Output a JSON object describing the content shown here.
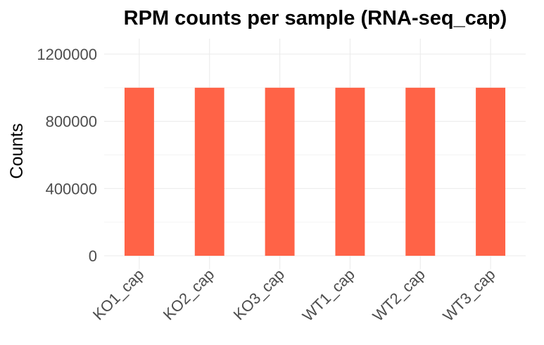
{
  "chart_data": {
    "type": "bar",
    "title": "RPM counts per sample (RNA-seq_cap)",
    "xlabel": "",
    "ylabel": "Counts",
    "categories": [
      "KO1_cap",
      "KO2_cap",
      "KO3_cap",
      "WT1_cap",
      "WT2_cap",
      "WT3_cap"
    ],
    "values": [
      1000000,
      1000000,
      1000000,
      1000000,
      1000000,
      1000000
    ],
    "ylim": [
      0,
      1200000
    ],
    "yticks": [
      0,
      400000,
      800000,
      1200000
    ],
    "ytick_labels": [
      "0",
      "400000",
      "800000",
      "1200000"
    ],
    "bar_color": "#FF6347",
    "grid": true,
    "legend": "none"
  }
}
